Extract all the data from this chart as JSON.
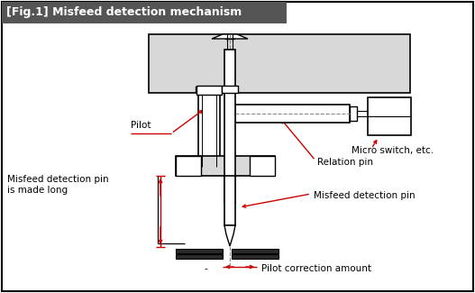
{
  "title": "[Fig.1] Misfeed detection mechanism",
  "title_bg": "#555555",
  "title_color": "#ffffff",
  "bg_color": "#ffffff",
  "labels": {
    "pilot": "Pilot",
    "misfeed_long": "Misfeed detection pin\nis made long",
    "micro_switch": "Micro switch, etc.",
    "relation_pin": "Relation pin",
    "misfeed_pin": "Misfeed detection pin",
    "pilot_correction": "Pilot correction amount",
    "minus": "-"
  },
  "red": "#cc0000",
  "black": "#000000",
  "gray_fill": "#d8d8d8",
  "white": "#ffffff",
  "dark_strip": "#2a2a2a"
}
